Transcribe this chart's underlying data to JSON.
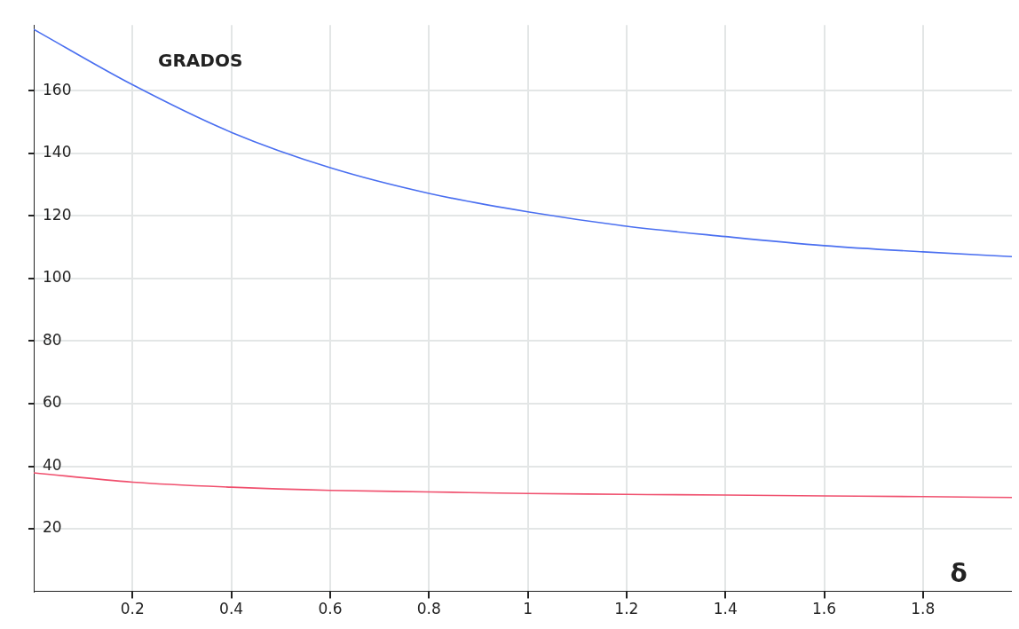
{
  "chart_data": {
    "type": "line",
    "xlabel": "δ",
    "ylabel": "GRADOS",
    "xlim": [
      0,
      1.98
    ],
    "ylim": [
      0,
      181
    ],
    "xticks": [
      0.2,
      0.4,
      0.6,
      0.8,
      1,
      1.2,
      1.4,
      1.6,
      1.8
    ],
    "yticks": [
      20,
      40,
      60,
      80,
      100,
      120,
      140,
      160
    ],
    "grid": true,
    "legend": false,
    "marker": "none",
    "line_style": "solid",
    "series": [
      {
        "color": "#4a6ff0",
        "x": [
          0,
          0.2,
          0.4,
          0.6,
          0.8,
          1,
          1.2,
          1.4,
          1.6,
          1.8,
          1.98
        ],
        "values": [
          179.6,
          161.9,
          146.7,
          135.4,
          127.2,
          121.3,
          116.7,
          113.4,
          110.5,
          108.5,
          107
        ]
      },
      {
        "color": "#f0506e",
        "x": [
          0,
          0.2,
          0.4,
          0.6,
          0.8,
          1,
          1.2,
          1.4,
          1.6,
          1.8,
          1.98
        ],
        "values": [
          37.9,
          34.9,
          33.3,
          32.3,
          31.8,
          31.3,
          31,
          30.8,
          30.5,
          30.3,
          30
        ]
      }
    ]
  }
}
